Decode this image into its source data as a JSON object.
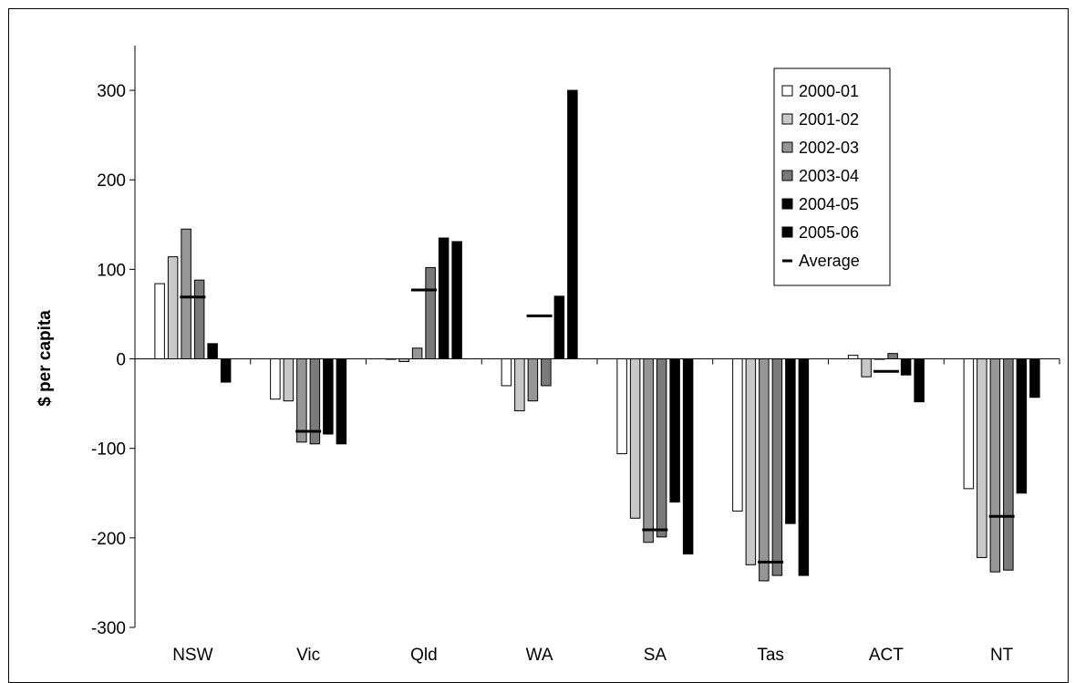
{
  "chart_data": {
    "type": "bar",
    "title": "",
    "xlabel": "",
    "ylabel": "$ per capita",
    "ylim": [
      -300,
      350
    ],
    "yticks": [
      -300,
      -200,
      -100,
      0,
      100,
      200,
      300
    ],
    "grid": false,
    "legend_position": "top-right",
    "categories": [
      "NSW",
      "Vic",
      "Qld",
      "WA",
      "SA",
      "Tas",
      "ACT",
      "NT"
    ],
    "series": [
      {
        "name": "2000-01",
        "color": "#ffffff",
        "values": [
          84,
          -45,
          0,
          -30,
          -106,
          -170,
          4,
          -145
        ]
      },
      {
        "name": "2001-02",
        "color": "#c8c8c8",
        "values": [
          114,
          -47,
          -3,
          -58,
          -178,
          -230,
          -20,
          -222
        ]
      },
      {
        "name": "2002-03",
        "color": "#969696",
        "values": [
          145,
          -93,
          12,
          -47,
          -205,
          -248,
          0,
          -238
        ]
      },
      {
        "name": "2003-04",
        "color": "#7a7a7a",
        "values": [
          88,
          -95,
          102,
          -30,
          -199,
          -242,
          6,
          -236
        ]
      },
      {
        "name": "2004-05",
        "color": "#000000",
        "values": [
          17,
          -84,
          135,
          70,
          -160,
          -184,
          -18,
          -150
        ]
      },
      {
        "name": "2005-06",
        "color": "#000000",
        "values": [
          -26,
          -95,
          131,
          300,
          -218,
          -242,
          -48,
          -43
        ]
      }
    ],
    "average": {
      "name": "Average",
      "color": "#000000",
      "values": [
        69,
        -81,
        77,
        48,
        -191,
        -227,
        -14,
        -176
      ]
    }
  }
}
